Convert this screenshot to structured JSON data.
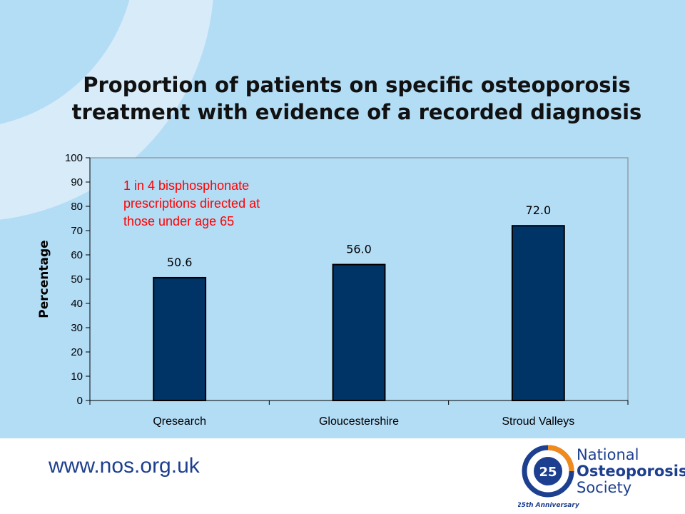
{
  "slide": {
    "title_line1": "Proportion of patients on specific osteoporosis",
    "title_line2": "treatment with evidence of a recorded diagnosis"
  },
  "chart_data": {
    "type": "bar",
    "ylabel": "Percentage",
    "xlabel": "",
    "ylim": [
      0,
      100
    ],
    "yticks": [
      0,
      10,
      20,
      30,
      40,
      50,
      60,
      70,
      80,
      90,
      100
    ],
    "categories": [
      "Qresearch",
      "Gloucestershire",
      "Stroud Valleys"
    ],
    "values": [
      50.6,
      56.0,
      72.0
    ],
    "value_labels": [
      "50.6",
      "56.0",
      "72.0"
    ],
    "bar_color": "#003366",
    "grid": false,
    "annotation": {
      "lines": [
        "1 in 4 bisphosphonate",
        "prescriptions directed at",
        "those under age 65"
      ],
      "color": "#ff0000"
    }
  },
  "footer": {
    "url": "www.nos.org.uk",
    "logo": {
      "line1": "National",
      "line2": "Osteoporosis",
      "line3": "Society",
      "badge_number": "25",
      "badge_caption": "25th Anniversary"
    }
  }
}
